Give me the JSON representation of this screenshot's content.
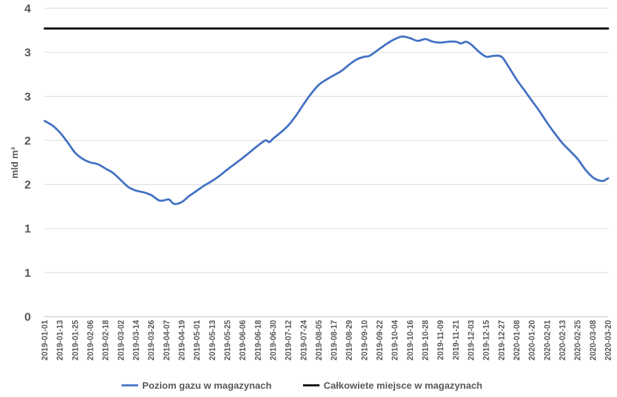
{
  "chart_data": {
    "type": "line",
    "ylabel": "mld m³",
    "ylim": [
      0,
      3.5
    ],
    "y_ticks": [
      0,
      0.5,
      1,
      1.5,
      2,
      2.5,
      3,
      3.5
    ],
    "y_tick_labels": [
      "0",
      "1",
      "1",
      "2",
      "2",
      "3",
      "3",
      "4"
    ],
    "grid": true,
    "legend_position": "bottom",
    "x_tick_labels": [
      "2019-01-01",
      "2019-01-13",
      "2019-01-25",
      "2019-02-06",
      "2019-02-18",
      "2019-03-02",
      "2019-03-14",
      "2019-03-26",
      "2019-04-07",
      "2019-04-19",
      "2019-05-01",
      "2019-05-13",
      "2019-05-25",
      "2019-06-06",
      "2019-06-18",
      "2019-06-30",
      "2019-07-12",
      "2019-07-24",
      "2019-08-05",
      "2019-08-17",
      "2019-08-29",
      "2019-09-10",
      "2019-09-22",
      "2019-10-04",
      "2019-10-16",
      "2019-10-28",
      "2019-11-09",
      "2019-11-21",
      "2019-12-03",
      "2019-12-15",
      "2019-12-27",
      "2020-01-08",
      "2020-01-20",
      "2020-02-01",
      "2020-02-13",
      "2020-02-25",
      "2020-03-08",
      "2020-03-20"
    ],
    "series": [
      {
        "name": "Poziom gazu w magazynach",
        "color": "#4472C4",
        "x": [
          "2019-01-01",
          "2019-01-07",
          "2019-01-13",
          "2019-01-19",
          "2019-01-25",
          "2019-01-31",
          "2019-02-06",
          "2019-02-12",
          "2019-02-18",
          "2019-02-24",
          "2019-03-02",
          "2019-03-08",
          "2019-03-14",
          "2019-03-20",
          "2019-03-26",
          "2019-04-01",
          "2019-04-05",
          "2019-04-09",
          "2019-04-13",
          "2019-04-19",
          "2019-04-25",
          "2019-05-01",
          "2019-05-07",
          "2019-05-13",
          "2019-05-19",
          "2019-05-25",
          "2019-06-06",
          "2019-06-18",
          "2019-06-24",
          "2019-06-27",
          "2019-06-30",
          "2019-07-06",
          "2019-07-12",
          "2019-07-18",
          "2019-07-24",
          "2019-07-30",
          "2019-08-05",
          "2019-08-11",
          "2019-08-17",
          "2019-08-23",
          "2019-08-29",
          "2019-09-04",
          "2019-09-10",
          "2019-09-14",
          "2019-09-22",
          "2019-09-28",
          "2019-10-04",
          "2019-10-10",
          "2019-10-16",
          "2019-10-22",
          "2019-10-28",
          "2019-11-03",
          "2019-11-09",
          "2019-11-15",
          "2019-11-21",
          "2019-11-25",
          "2019-11-29",
          "2019-12-03",
          "2019-12-09",
          "2019-12-15",
          "2019-12-21",
          "2019-12-27",
          "2020-01-01",
          "2020-01-08",
          "2020-01-14",
          "2020-01-20",
          "2020-01-26",
          "2020-02-01",
          "2020-02-07",
          "2020-02-13",
          "2020-02-19",
          "2020-02-25",
          "2020-03-02",
          "2020-03-08",
          "2020-03-12",
          "2020-03-16",
          "2020-03-20"
        ],
        "values": [
          2.22,
          2.17,
          2.09,
          1.98,
          1.86,
          1.79,
          1.75,
          1.73,
          1.68,
          1.63,
          1.55,
          1.47,
          1.43,
          1.41,
          1.38,
          1.32,
          1.32,
          1.33,
          1.28,
          1.3,
          1.37,
          1.43,
          1.49,
          1.54,
          1.6,
          1.67,
          1.8,
          1.94,
          2.0,
          1.98,
          2.02,
          2.09,
          2.17,
          2.28,
          2.41,
          2.53,
          2.63,
          2.69,
          2.74,
          2.79,
          2.86,
          2.92,
          2.95,
          2.96,
          3.04,
          3.1,
          3.15,
          3.18,
          3.16,
          3.13,
          3.15,
          3.12,
          3.11,
          3.12,
          3.12,
          3.1,
          3.12,
          3.09,
          3.01,
          2.95,
          2.96,
          2.95,
          2.85,
          2.69,
          2.57,
          2.45,
          2.33,
          2.2,
          2.08,
          1.97,
          1.88,
          1.79,
          1.67,
          1.58,
          1.55,
          1.54,
          1.57
        ]
      },
      {
        "name": "Całkowiete miejsce w magazynach",
        "color": "#000000",
        "x": [
          "2019-01-01",
          "2020-03-20"
        ],
        "values": [
          3.27,
          3.27
        ]
      }
    ]
  }
}
